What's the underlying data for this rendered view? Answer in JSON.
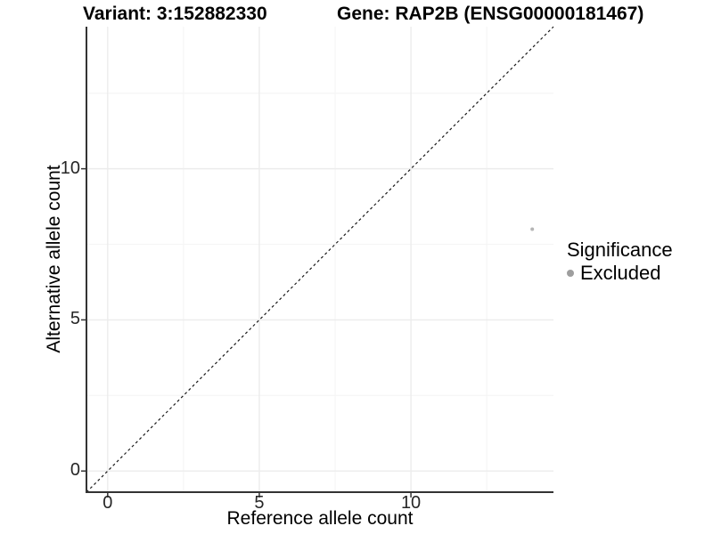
{
  "chart_data": {
    "type": "scatter",
    "title_left": "Variant: 3:152882330",
    "title_right": "Gene: RAP2B (ENSG00000181467)",
    "xlabel": "Reference allele count",
    "ylabel": "Alternative allele count",
    "xlim": [
      -0.7,
      14.7
    ],
    "ylim": [
      -0.7,
      14.7
    ],
    "x_major_ticks": [
      0,
      5,
      10
    ],
    "x_minor_ticks": [
      2.5,
      7.5,
      12.5
    ],
    "y_major_ticks": [
      0,
      5,
      10
    ],
    "y_minor_ticks": [
      2.5,
      7.5,
      12.5
    ],
    "grid": true,
    "points": [
      {
        "x": 14,
        "y": 8,
        "significance": "Excluded"
      }
    ],
    "abline": {
      "slope": 1,
      "intercept": 0,
      "style": "dashed"
    },
    "legend": {
      "title": "Significance",
      "position": "right",
      "items": [
        {
          "label": "Excluded",
          "color": "#9e9e9e"
        }
      ]
    },
    "colors": {
      "background": "#ffffff",
      "axis_line": "#333333",
      "grid_major": "#ececec",
      "grid_minor": "#f5f5f5",
      "point": "#b5b5b5",
      "abline": "#1a1a1a",
      "text": "#000000"
    }
  }
}
